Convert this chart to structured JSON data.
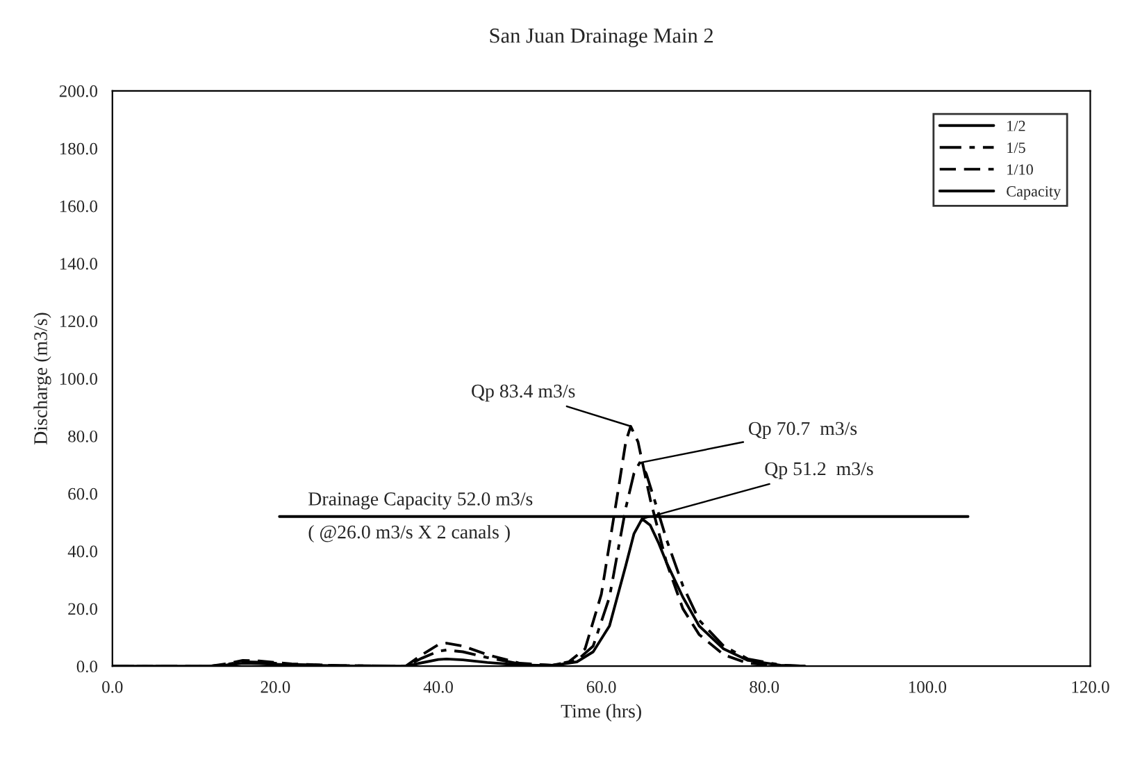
{
  "chart_data": {
    "type": "line",
    "title": "San Juan Drainage Main 2",
    "xlabel": "Time (hrs)",
    "ylabel": "Discharge (m3/s)",
    "xlim": [
      0,
      120
    ],
    "ylim": [
      0,
      200
    ],
    "xticks": [
      {
        "value": 0,
        "label": "0.0"
      },
      {
        "value": 20,
        "label": "20.0"
      },
      {
        "value": 40,
        "label": "40.0"
      },
      {
        "value": 60,
        "label": "60.0"
      },
      {
        "value": 80,
        "label": "80.0"
      },
      {
        "value": 100,
        "label": "100.0"
      },
      {
        "value": 120,
        "label": "120.0"
      }
    ],
    "yticks": [
      {
        "value": 0,
        "label": "0.0"
      },
      {
        "value": 20,
        "label": "20.0"
      },
      {
        "value": 40,
        "label": "40.0"
      },
      {
        "value": 60,
        "label": "60.0"
      },
      {
        "value": 80,
        "label": "80.0"
      },
      {
        "value": 100,
        "label": "100.0"
      },
      {
        "value": 120,
        "label": "120.0"
      },
      {
        "value": 140,
        "label": "140.0"
      },
      {
        "value": 160,
        "label": "160.0"
      },
      {
        "value": 180,
        "label": "180.0"
      },
      {
        "value": 200,
        "label": "200.0"
      }
    ],
    "grid": false,
    "legend": "top right",
    "marker": "none",
    "series": [
      {
        "name": "1/2",
        "color": "#000000",
        "line_style": "solid",
        "x": [
          0,
          12,
          14,
          16,
          18,
          22,
          28,
          36,
          38,
          40,
          41,
          43,
          46,
          50,
          54,
          57,
          59,
          61,
          63,
          64,
          65,
          66,
          67,
          68,
          70,
          72,
          75,
          78,
          82,
          85
        ],
        "values": [
          0,
          0,
          0.4,
          1.0,
          0.9,
          0.4,
          0.1,
          0,
          1.2,
          2.3,
          2.5,
          2.2,
          1.3,
          0.4,
          0.2,
          1.5,
          5,
          14,
          35,
          46,
          51.2,
          49,
          43,
          36,
          24,
          14,
          6,
          2,
          0.3,
          0
        ]
      },
      {
        "name": "1/5",
        "color": "#000000",
        "line_style": "dashdot",
        "x": [
          0,
          12,
          14,
          16,
          18,
          22,
          28,
          36,
          38,
          40,
          41,
          43,
          46,
          50,
          54,
          57,
          59,
          61,
          63,
          64,
          64.7,
          65.5,
          66.5,
          68,
          70,
          72,
          75,
          78,
          82,
          85
        ],
        "values": [
          0,
          0,
          0.6,
          1.5,
          1.4,
          0.6,
          0.2,
          0,
          2.8,
          5.2,
          5.6,
          5,
          3,
          0.8,
          0.3,
          2,
          7,
          24,
          55,
          67,
          70.7,
          67,
          58,
          44,
          28,
          16,
          7,
          2.5,
          0.4,
          0
        ]
      },
      {
        "name": "1/10",
        "color": "#000000",
        "line_style": "dashed",
        "x": [
          0,
          12,
          14,
          16,
          18,
          22,
          28,
          36,
          38,
          40,
          41,
          43,
          46,
          50,
          54,
          56,
          58,
          60,
          62,
          63,
          63.6,
          64.5,
          66,
          68,
          70,
          72,
          75,
          78,
          82,
          85
        ],
        "values": [
          0,
          0,
          0.8,
          2.0,
          1.8,
          0.8,
          0.2,
          0,
          4,
          7.5,
          8,
          7,
          4,
          1,
          0.3,
          1.5,
          6,
          25,
          60,
          78,
          83.4,
          78,
          58,
          36,
          20,
          11,
          4,
          1,
          0.2,
          0
        ]
      },
      {
        "name": "Capacity",
        "color": "#000000",
        "line_style": "solid",
        "x": [
          20.5,
          105
        ],
        "values": [
          52,
          52
        ]
      }
    ],
    "annotations": [
      {
        "text": "Qp 83.4 m3/s",
        "x": 63.6,
        "y": 83.4
      },
      {
        "text": "Qp 70.7  m3/s",
        "x": 64.7,
        "y": 70.7
      },
      {
        "text": "Qp 51.2  m3/s",
        "x": 65,
        "y": 51.2
      },
      "Drainage Capacity 52.0 m3/s",
      "( @26.0 m3/s X 2 canals )"
    ]
  }
}
